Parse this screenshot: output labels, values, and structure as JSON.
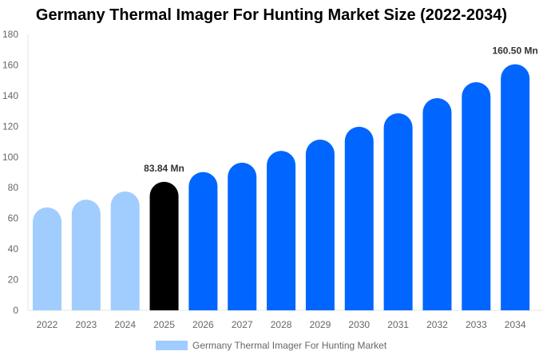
{
  "chart_data": {
    "type": "bar",
    "title": "Germany Thermal Imager For Hunting Market Size (2022-2034)",
    "categories": [
      "2022",
      "2023",
      "2024",
      "2025",
      "2026",
      "2027",
      "2028",
      "2029",
      "2030",
      "2031",
      "2032",
      "2033",
      "2034"
    ],
    "series": [
      {
        "name": "Germany Thermal Imager For Hunting Market",
        "values": [
          67.1,
          72.2,
          77.5,
          83.84,
          90.2,
          96.3,
          104.0,
          111.3,
          119.7,
          128.5,
          138.4,
          148.8,
          160.5
        ]
      }
    ],
    "data_labels": {
      "3": "83.84 Mn",
      "12": "160.50 Mn"
    },
    "ylim": [
      0,
      180
    ],
    "yticks": [
      0,
      20,
      40,
      60,
      80,
      100,
      120,
      140,
      160,
      180
    ],
    "grid": false,
    "legend_position": "bottom",
    "colors": {
      "historical": "#a0cdfd",
      "base_year": "#000000",
      "forecast": "#0066ff"
    }
  }
}
